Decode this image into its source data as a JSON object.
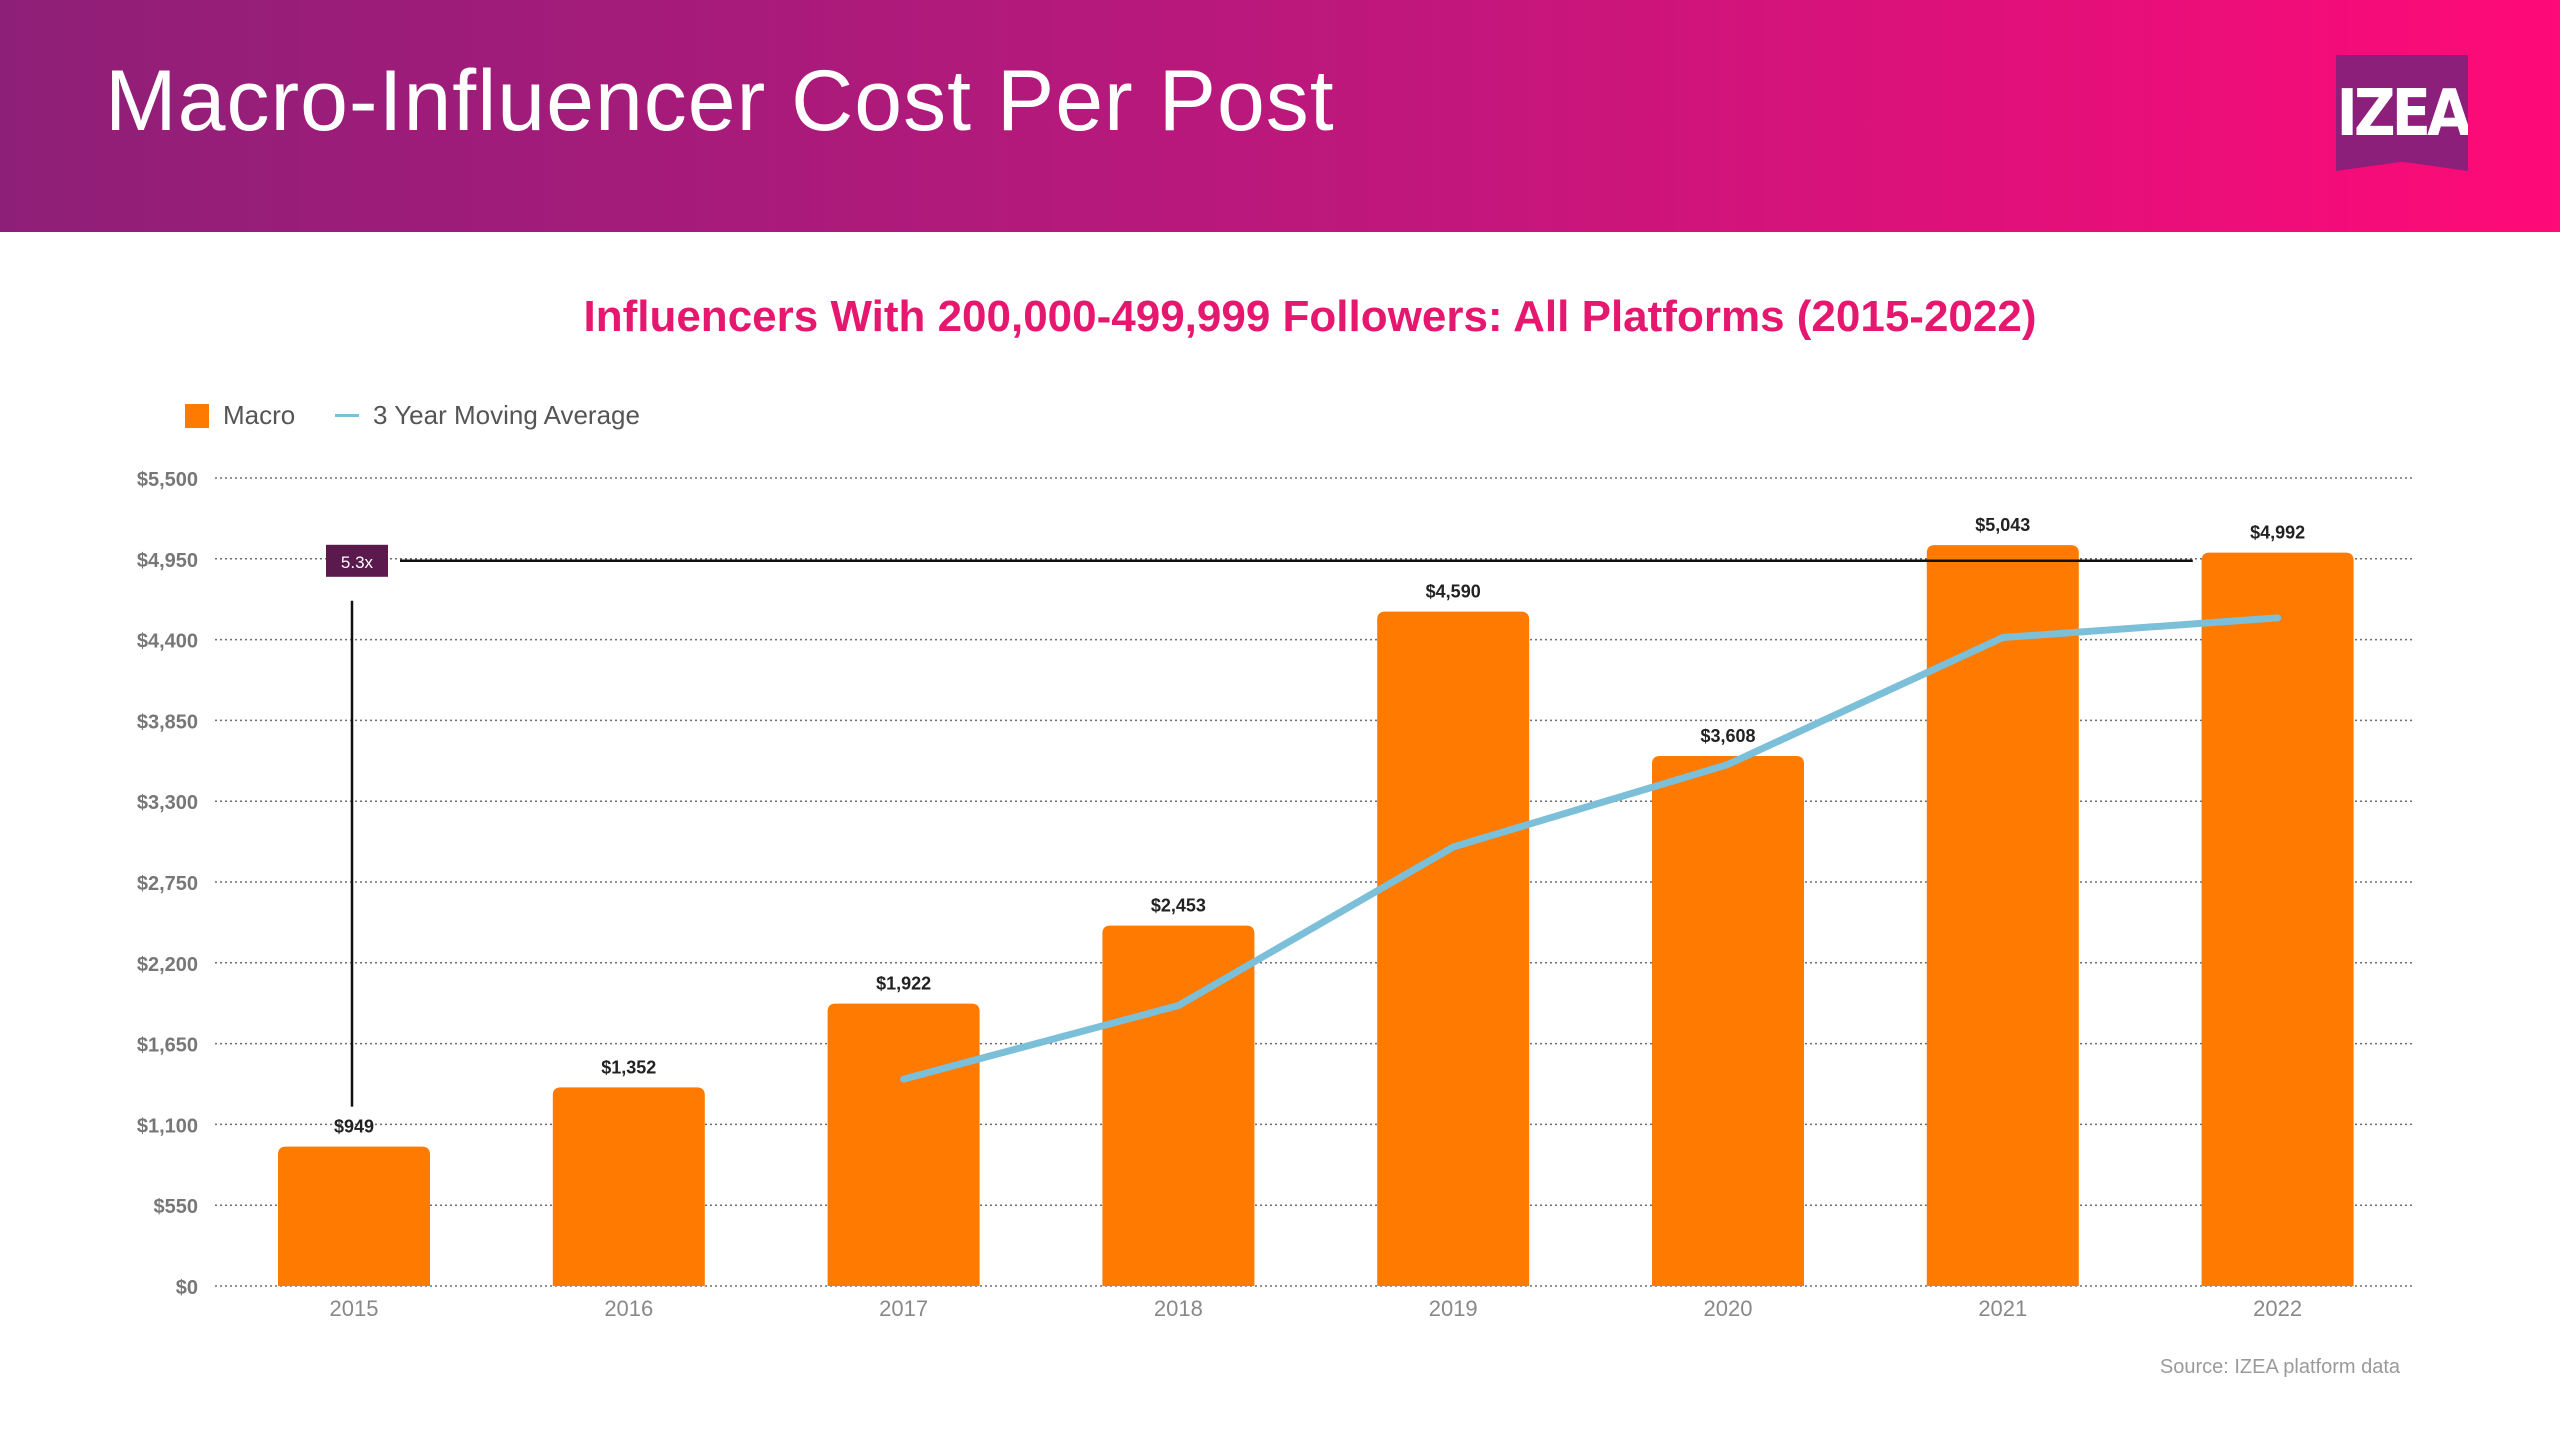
{
  "header": {
    "title": "Macro-Influencer Cost Per Post",
    "logo_text": "IZEA"
  },
  "colors": {
    "bar": "#ff7a00",
    "line": "#7bbfd8",
    "title": "#e6176f",
    "annotation": "#5a1a4e"
  },
  "chart_data": {
    "type": "bar",
    "title": "Influencers With 200,000-499,999 Followers: All Platforms (2015-2022)",
    "categories": [
      "2015",
      "2016",
      "2017",
      "2018",
      "2019",
      "2020",
      "2021",
      "2022"
    ],
    "series": [
      {
        "name": "Macro",
        "type": "bar",
        "values": [
          949,
          1352,
          1922,
          2453,
          4590,
          3608,
          5043,
          4992
        ],
        "labels": [
          "$949",
          "$1,352",
          "$1,922",
          "$2,453",
          "$4,590",
          "$3,608",
          "$5,043",
          "$4,992"
        ]
      },
      {
        "name": "3 Year Moving Average",
        "type": "line",
        "values": [
          null,
          null,
          1408,
          1909,
          2988,
          3550,
          4414,
          4548
        ]
      }
    ],
    "ylim": [
      0,
      5500
    ],
    "yticks": [
      0,
      550,
      1100,
      1650,
      2200,
      2750,
      3300,
      3850,
      4400,
      4950,
      5500
    ],
    "ytick_labels": [
      "$0",
      "$550",
      "$1,100",
      "$1,650",
      "$2,200",
      "$2,750",
      "$3,300",
      "$3,850",
      "$4,400",
      "$4,950",
      "$5,500"
    ],
    "grid": true,
    "legend_position": "top-left",
    "annotation": {
      "label": "5.3x",
      "from_category": "2015",
      "to_category": "2021",
      "value": 4950
    },
    "source": "Source: IZEA platform data"
  }
}
